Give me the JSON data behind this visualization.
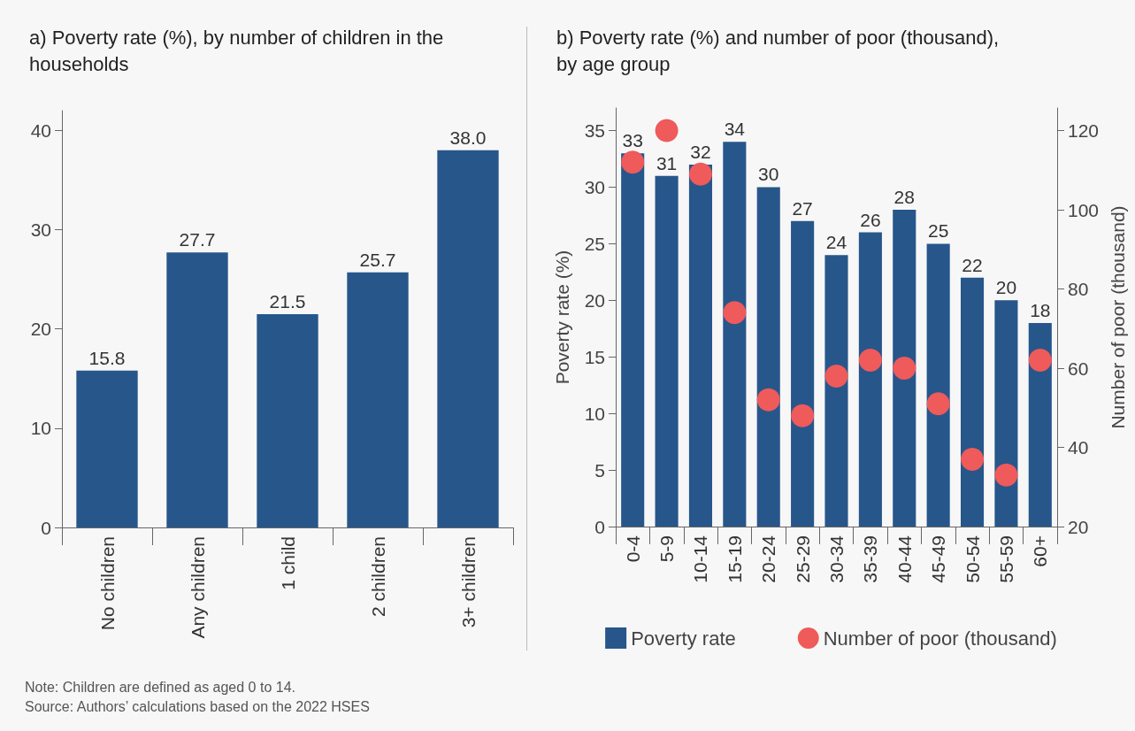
{
  "chart_data": [
    {
      "type": "bar",
      "title": "a) Poverty rate (%), by number of children in the households",
      "categories": [
        "No children",
        "Any children",
        "1 child",
        "2 children",
        "3+ children"
      ],
      "values": [
        15.8,
        27.7,
        21.5,
        25.7,
        38.0
      ],
      "value_labels": [
        "15.8",
        "27.7",
        "21.5",
        "25.7",
        "38.0"
      ],
      "color": "#27568b",
      "ylim": [
        0,
        42
      ],
      "yticks": [
        0,
        10,
        20,
        30,
        40
      ],
      "grid": false,
      "legend": false,
      "annotations": [
        "Note: Children are defined as aged 0 to 14.",
        "Source: Authors’ calculations based on the 2022 HSES"
      ]
    },
    {
      "type": "bar",
      "title": "b) Poverty rate (%) and number of poor (thousand), by age group",
      "categories": [
        "0-4",
        "5-9",
        "10-14",
        "15-19",
        "20-24",
        "25-29",
        "30-34",
        "35-39",
        "40-44",
        "45-49",
        "50-54",
        "55-59",
        "60+"
      ],
      "ylabel": "Poverty rate (%)",
      "y2label": "Number of poor (thousand)",
      "series": [
        {
          "name": "Poverty rate",
          "color": "#27568b",
          "values": [
            33,
            31,
            32,
            34,
            30,
            27,
            24,
            26,
            28,
            25,
            22,
            20,
            18
          ],
          "data_labels": true
        },
        {
          "name": "Number of poor (thousand)",
          "type": "scatter",
          "axis": "y2",
          "marker": "circle",
          "color": "#ef5a5a",
          "values": [
            112,
            120,
            109,
            74,
            52,
            48,
            58,
            62,
            60,
            51,
            37,
            33,
            62
          ]
        }
      ],
      "ylim": [
        0,
        37
      ],
      "yticks": [
        0,
        5,
        10,
        15,
        20,
        25,
        30,
        35
      ],
      "y2lim": [
        20,
        125.7
      ],
      "y2ticks": [
        20,
        40,
        60,
        80,
        100,
        120
      ],
      "grid": false,
      "legend": "bottom"
    }
  ]
}
